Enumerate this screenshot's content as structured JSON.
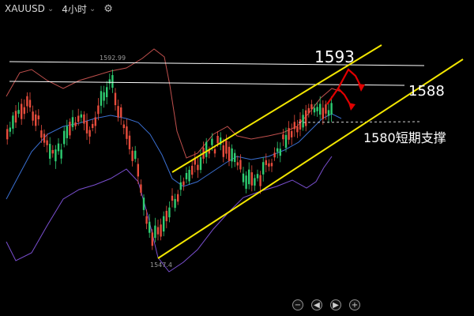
{
  "toolbar": {
    "symbol": "XAUUSD",
    "timeframe": "4小时",
    "chevron_icon": "chevron-down-icon",
    "settings_icon": "gear-icon"
  },
  "chart_data": {
    "type": "candlestick",
    "top_price_label": "1592.99",
    "bottom_price_label": "1547.4",
    "annotations": {
      "resistance_high": "1593",
      "resistance_low": "1588",
      "support": "1580短期支撑"
    },
    "levels": {
      "resistance_high": 1593,
      "resistance_low": 1588,
      "support": 1580
    },
    "colors": {
      "bull": "#2ecc71",
      "bear": "#e74c3c",
      "channel": "#f2e600",
      "boll_upper": "#c0504d",
      "boll_mid": "#3a6fd1",
      "boll_lower": "#7a4fd0",
      "forecast": "#e00000",
      "hline": "#ffffff"
    }
  },
  "controls": {
    "zoom_out_icon": "−",
    "prev_icon": "◀",
    "next_icon": "▶",
    "zoom_in_icon": "+"
  }
}
